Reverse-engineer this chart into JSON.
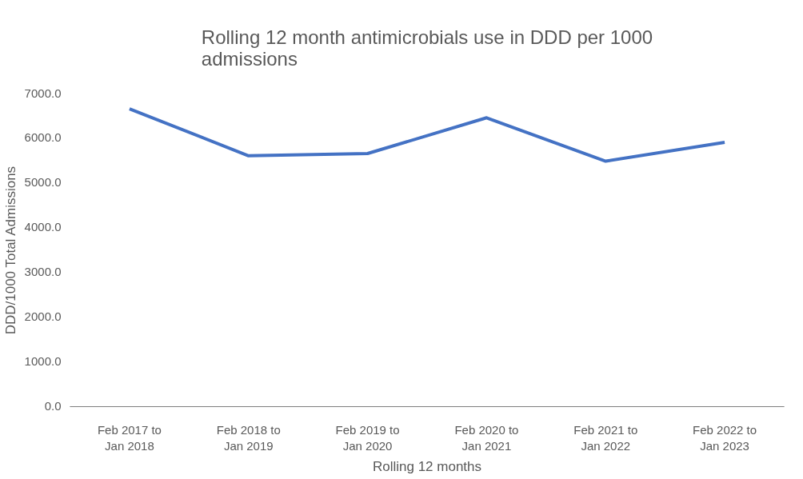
{
  "chart_data": {
    "type": "line",
    "title": "Rolling 12 month antimicrobials use in DDD per 1000 admissions",
    "xlabel": "Rolling 12 months",
    "ylabel": "DDD/1000 Total Admissions",
    "categories": [
      "Feb 2017 to Jan 2018",
      "Feb 2018 to Jan 2019",
      "Feb 2019 to Jan 2020",
      "Feb 2020 to Jan 2021",
      "Feb 2021 to Jan 2022",
      "Feb 2022 to Jan 2023"
    ],
    "series": [
      {
        "color": "#4472c4",
        "values": [
          6650,
          5600,
          5650,
          6450,
          5480,
          5900
        ]
      }
    ],
    "ylim": [
      0,
      7000
    ],
    "yticks": [
      {
        "value": 0,
        "label": "0.0"
      },
      {
        "value": 1000,
        "label": "1000.0"
      },
      {
        "value": 2000,
        "label": "2000.0"
      },
      {
        "value": 3000,
        "label": "3000.0"
      },
      {
        "value": 4000,
        "label": "4000.0"
      },
      {
        "value": 5000,
        "label": "5000.0"
      },
      {
        "value": 6000,
        "label": "6000.0"
      },
      {
        "value": 7000,
        "label": "7000.0"
      }
    ],
    "grid": false,
    "marker": "none",
    "line_style": "solid"
  }
}
